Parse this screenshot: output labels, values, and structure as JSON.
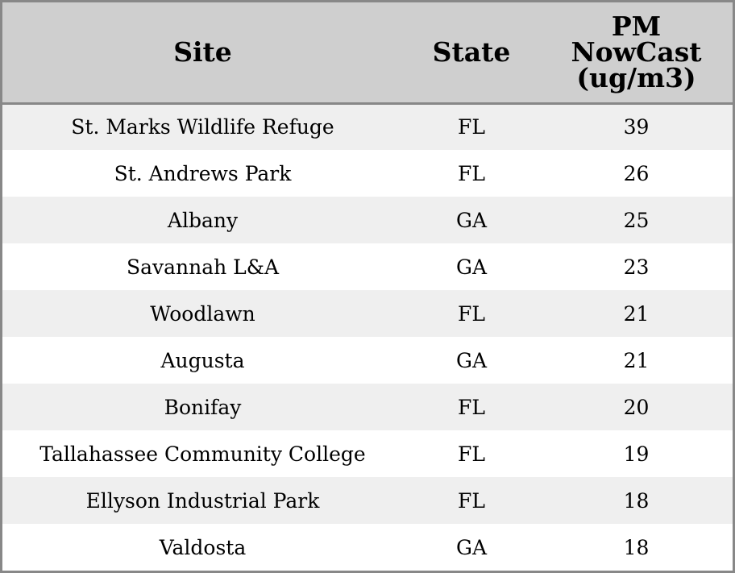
{
  "chart_data": {
    "type": "table",
    "columns": [
      "Site",
      "State",
      "PM NowCast (ug/m3)"
    ],
    "header_lines": {
      "site": "Site",
      "state": "State",
      "pm": [
        "PM",
        "NowCast",
        "(ug/m3)"
      ]
    },
    "rows": [
      {
        "site": "St. Marks Wildlife Refuge",
        "state": "FL",
        "pm": "39"
      },
      {
        "site": "St. Andrews Park",
        "state": "FL",
        "pm": "26"
      },
      {
        "site": "Albany",
        "state": "GA",
        "pm": "25"
      },
      {
        "site": "Savannah L&A",
        "state": "GA",
        "pm": "23"
      },
      {
        "site": "Woodlawn",
        "state": "FL",
        "pm": "21"
      },
      {
        "site": "Augusta",
        "state": "GA",
        "pm": "21"
      },
      {
        "site": "Bonifay",
        "state": "FL",
        "pm": "20"
      },
      {
        "site": "Tallahassee Community College",
        "state": "FL",
        "pm": "19"
      },
      {
        "site": "Ellyson Industrial Park",
        "state": "FL",
        "pm": "18"
      },
      {
        "site": "Valdosta",
        "state": "GA",
        "pm": "18"
      }
    ],
    "colors": {
      "header_background": "#cfcfcf",
      "row_shaded": "#efefef",
      "row_plain": "#ffffff",
      "border": "#888888"
    }
  }
}
